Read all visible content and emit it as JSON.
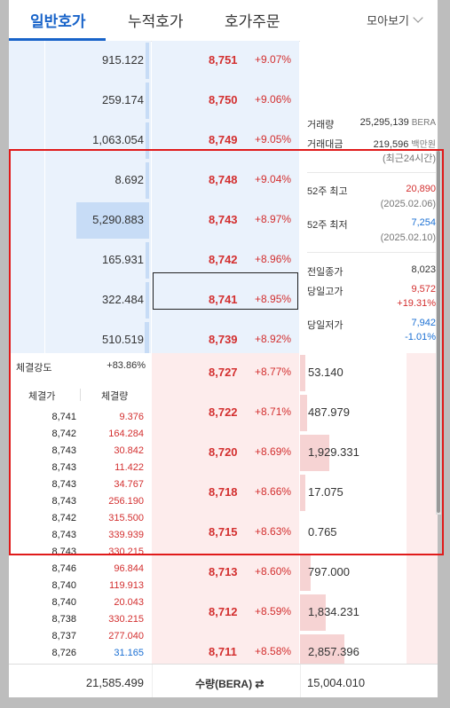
{
  "tabs": [
    "일반호가",
    "누적호가",
    "호가주문"
  ],
  "view_more": "모아보기",
  "asks": [
    {
      "qty": "915.122",
      "price": "8,751",
      "pct": "+9.07%",
      "fill": 0.03
    },
    {
      "qty": "259.174",
      "price": "8,750",
      "pct": "+9.06%",
      "fill": 0.02
    },
    {
      "qty": "1,063.054",
      "price": "8,749",
      "pct": "+9.05%",
      "fill": 0.03
    },
    {
      "qty": "8.692",
      "price": "8,748",
      "pct": "+9.04%",
      "fill": 0.01
    },
    {
      "qty": "5,290.883",
      "price": "8,743",
      "pct": "+8.97%",
      "fill": 0.68
    },
    {
      "qty": "165.931",
      "price": "8,742",
      "pct": "+8.96%",
      "fill": 0.02
    },
    {
      "qty": "322.484",
      "price": "8,741",
      "pct": "+8.95%",
      "fill": 0.03
    },
    {
      "qty": "510.519",
      "price": "8,739",
      "pct": "+8.92%",
      "fill": 0.04
    }
  ],
  "bids": [
    {
      "qty": "53.140",
      "price": "8,727",
      "pct": "+8.77%",
      "fill": 0.01
    },
    {
      "qty": "487.979",
      "price": "8,722",
      "pct": "+8.71%",
      "fill": 0.07
    },
    {
      "qty": "1,929.331",
      "price": "8,720",
      "pct": "+8.69%",
      "fill": 0.28
    },
    {
      "qty": "17.075",
      "price": "8,718",
      "pct": "+8.66%",
      "fill": 0.01
    },
    {
      "qty": "0.765",
      "price": "8,715",
      "pct": "+8.63%",
      "fill": 0.0
    },
    {
      "qty": "797.000",
      "price": "8,713",
      "pct": "+8.60%",
      "fill": 0.1
    },
    {
      "qty": "1,834.231",
      "price": "8,712",
      "pct": "+8.59%",
      "fill": 0.24
    },
    {
      "qty": "2,857.396",
      "price": "8,711",
      "pct": "+8.58%",
      "fill": 0.42
    }
  ],
  "info": {
    "volume_label": "거래량",
    "volume_value": "25,295,139",
    "volume_unit": "BERA",
    "amount_label": "거래대금",
    "amount_value": "219,596",
    "amount_unit": "백만원",
    "amount_note": "(최근24시간)",
    "high52_label": "52주 최고",
    "high52_value": "20,890",
    "high52_date": "(2025.02.06)",
    "low52_label": "52주 최저",
    "low52_value": "7,254",
    "low52_date": "(2025.02.10)",
    "prev_close_label": "전일종가",
    "prev_close_value": "8,023",
    "day_high_label": "당일고가",
    "day_high_value": "9,572",
    "day_high_pct": "+19.31%",
    "day_low_label": "당일저가",
    "day_low_value": "7,942",
    "day_low_pct": "-1.01%"
  },
  "trades": {
    "strength_label": "체결강도",
    "strength_value": "+83.86%",
    "col_price": "체결가",
    "col_vol": "체결량",
    "rows": [
      {
        "p": "8,741",
        "v": "9.376"
      },
      {
        "p": "8,742",
        "v": "164.284"
      },
      {
        "p": "8,743",
        "v": "30.842"
      },
      {
        "p": "8,743",
        "v": "11.422"
      },
      {
        "p": "8,743",
        "v": "34.767"
      },
      {
        "p": "8,743",
        "v": "256.190"
      },
      {
        "p": "8,742",
        "v": "315.500"
      },
      {
        "p": "8,743",
        "v": "339.939"
      },
      {
        "p": "8,743",
        "v": "330.215"
      },
      {
        "p": "8,746",
        "v": "96.844"
      },
      {
        "p": "8,740",
        "v": "119.913"
      },
      {
        "p": "8,740",
        "v": "20.043"
      },
      {
        "p": "8,738",
        "v": "330.215"
      },
      {
        "p": "8,737",
        "v": "277.040"
      },
      {
        "p": "8,726",
        "v": "31.165"
      }
    ]
  },
  "footer": {
    "ask_total": "21,585.499",
    "middle_label": "수량(BERA) ⇄",
    "bid_total": "15,004.010"
  },
  "colors": {
    "ask_bg": "#eaf2fc",
    "bid_bg": "#fdecec",
    "up": "#d32f2f",
    "down": "#1a6fd3",
    "accent": "#1863c9"
  }
}
